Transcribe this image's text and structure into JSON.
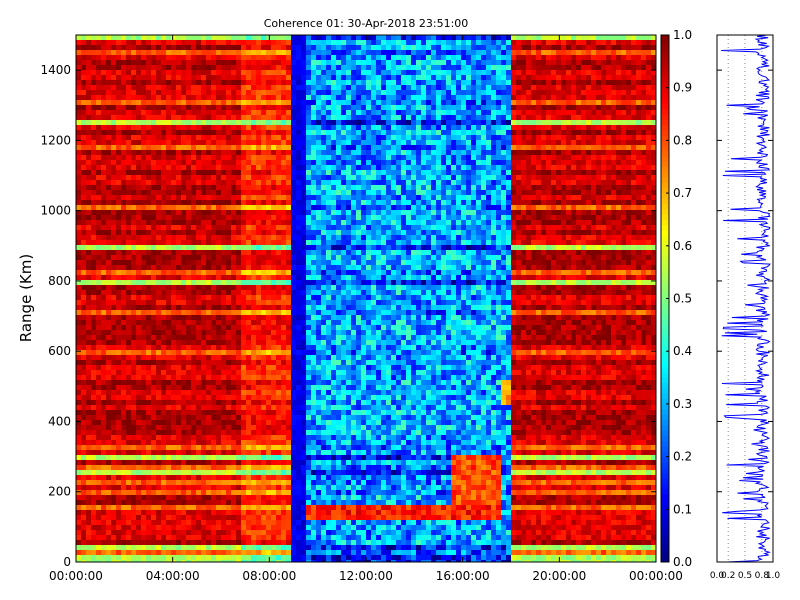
{
  "chart_data": [
    {
      "type": "heatmap",
      "title": "Coherence 01: 30-Apr-2018 23:51:00",
      "ylabel": "Range (Km)",
      "xlabel": "",
      "xlim": [
        "00:00:00",
        "24:00:00"
      ],
      "ylim": [
        0,
        1500
      ],
      "xticks": [
        "00:00:00",
        "04:00:00",
        "08:00:00",
        "12:00:00",
        "16:00:00",
        "20:00:00",
        "00:00:00"
      ],
      "yticks": [
        0,
        200,
        400,
        600,
        800,
        1000,
        1200,
        1400
      ],
      "colormap": "jet",
      "clim": [
        0.0,
        1.0
      ],
      "colorbar_ticks": [
        "0.0",
        "0.1",
        "0.2",
        "0.3",
        "0.4",
        "0.5",
        "0.6",
        "0.7",
        "0.8",
        "0.9",
        "1.0"
      ],
      "regions": [
        {
          "hours": [
            0.0,
            6.9
          ],
          "coherence": 0.9
        },
        {
          "hours": [
            6.9,
            9.0
          ],
          "coherence": 0.82
        },
        {
          "hours": [
            9.0,
            9.5
          ],
          "coherence": 0.1
        },
        {
          "hours": [
            9.5,
            17.9
          ],
          "coherence": 0.28
        },
        {
          "hours": [
            17.9,
            24.0
          ],
          "coherence": 0.9
        }
      ],
      "features": [
        {
          "hours": [
            9.5,
            17.5
          ],
          "range_km": [
            120,
            160
          ],
          "coherence": 0.85
        },
        {
          "hours": [
            15.6,
            17.6
          ],
          "range_km": [
            150,
            300
          ],
          "coherence": 0.8
        },
        {
          "hours": [
            17.5,
            17.9
          ],
          "range_km": [
            440,
            520
          ],
          "coherence": 0.7
        }
      ]
    },
    {
      "type": "line",
      "xticks": [
        "0.0",
        "0.2",
        "0.5",
        "0.8",
        "1.0"
      ],
      "xlim": [
        0.0,
        1.0
      ],
      "ylim": [
        0,
        1500
      ],
      "grid": "vertical dotted",
      "color": "#0000ff",
      "profile": [
        {
          "range_km": 0,
          "value": 0.8
        },
        {
          "range_km": 120,
          "value": 0.3
        },
        {
          "range_km": 240,
          "value": 0.5
        },
        {
          "range_km": 380,
          "value": 0.85
        },
        {
          "range_km": 450,
          "value": 0.65
        },
        {
          "range_km": 640,
          "value": 0.0
        },
        {
          "range_km": 800,
          "value": 0.75
        },
        {
          "range_km": 1060,
          "value": 0.05
        },
        {
          "range_km": 1250,
          "value": 0.6
        },
        {
          "range_km": 1400,
          "value": 0.9
        },
        {
          "range_km": 1480,
          "value": 0.9
        }
      ]
    }
  ]
}
